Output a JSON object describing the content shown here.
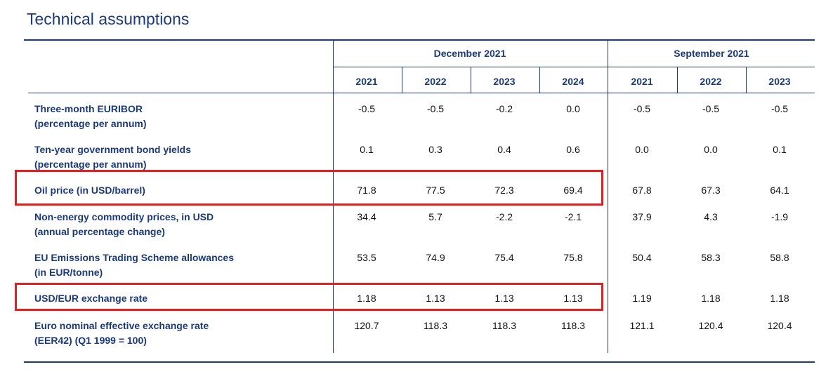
{
  "title": "Technical assumptions",
  "groups": [
    {
      "label": "December 2021",
      "years": [
        "2021",
        "2022",
        "2023",
        "2024"
      ]
    },
    {
      "label": "September 2021",
      "years": [
        "2021",
        "2022",
        "2023"
      ]
    }
  ],
  "rows": [
    {
      "label_lines": [
        "Three-month EURIBOR",
        "(percentage per annum)"
      ],
      "dec": [
        "-0.5",
        "-0.5",
        "-0.2",
        "0.0"
      ],
      "sep": [
        "-0.5",
        "-0.5",
        "-0.5"
      ],
      "highlighted": false
    },
    {
      "label_lines": [
        "Ten-year government bond yields",
        "(percentage per annum)"
      ],
      "dec": [
        "0.1",
        "0.3",
        "0.4",
        "0.6"
      ],
      "sep": [
        "0.0",
        "0.0",
        "0.1"
      ],
      "highlighted": false
    },
    {
      "label_lines": [
        "Oil price (in USD/barrel)"
      ],
      "dec": [
        "71.8",
        "77.5",
        "72.3",
        "69.4"
      ],
      "sep": [
        "67.8",
        "67.3",
        "64.1"
      ],
      "highlighted": true
    },
    {
      "label_lines": [
        "Non-energy commodity prices, in USD",
        "(annual percentage change)"
      ],
      "dec": [
        "34.4",
        "5.7",
        "-2.2",
        "-2.1"
      ],
      "sep": [
        "37.9",
        "4.3",
        "-1.9"
      ],
      "highlighted": false
    },
    {
      "label_lines": [
        "EU Emissions Trading Scheme allowances",
        "(in EUR/tonne)"
      ],
      "dec": [
        "53.5",
        "74.9",
        "75.4",
        "75.8"
      ],
      "sep": [
        "50.4",
        "58.3",
        "58.8"
      ],
      "highlighted": false
    },
    {
      "label_lines": [
        "USD/EUR exchange rate"
      ],
      "dec": [
        "1.18",
        "1.13",
        "1.13",
        "1.13"
      ],
      "sep": [
        "1.19",
        "1.18",
        "1.18"
      ],
      "highlighted": true
    },
    {
      "label_lines": [
        "Euro nominal effective exchange rate",
        "(EER42) (Q1 1999 = 100)"
      ],
      "dec": [
        "120.7",
        "118.3",
        "118.3",
        "118.3"
      ],
      "sep": [
        "121.1",
        "120.4",
        "120.4"
      ],
      "highlighted": false
    }
  ],
  "colors": {
    "text": "#1b3a7a",
    "highlight": "#e02020"
  }
}
